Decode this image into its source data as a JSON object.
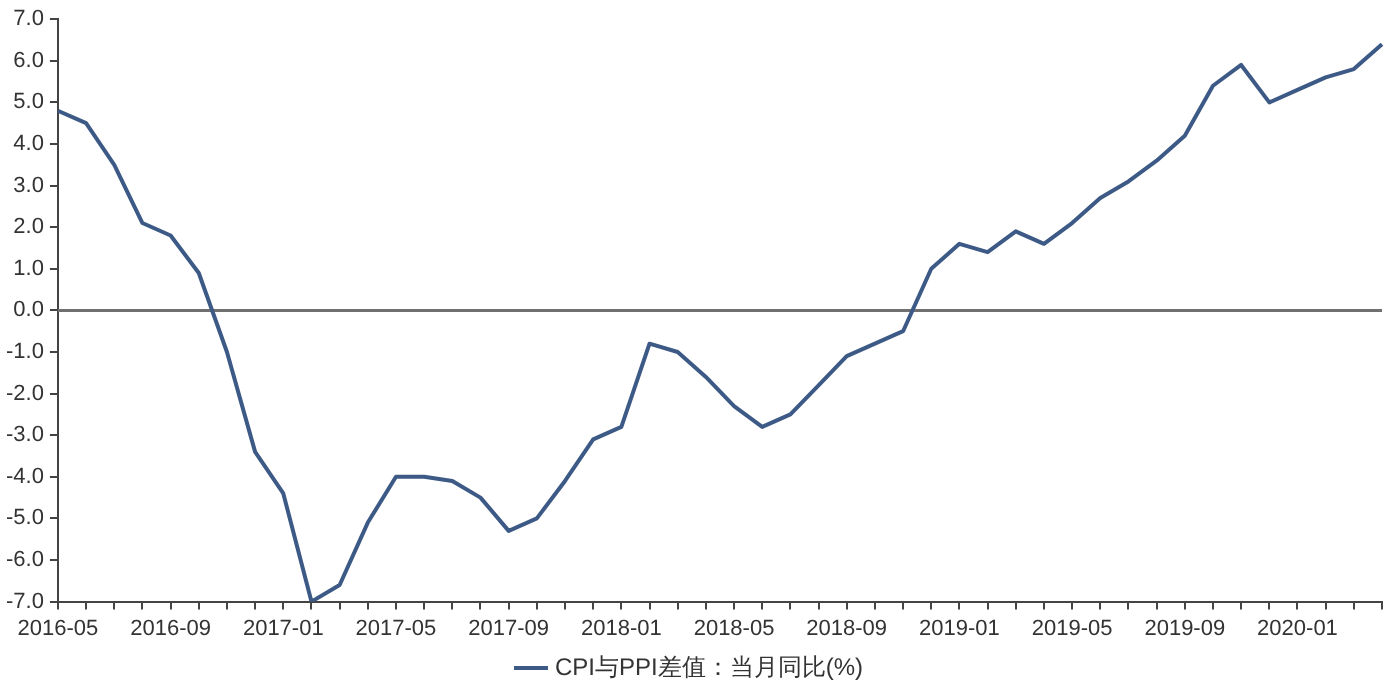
{
  "chart_data": {
    "type": "line",
    "categories": [
      "2016-05",
      null,
      null,
      null,
      "2016-09",
      null,
      null,
      null,
      "2017-01",
      null,
      null,
      null,
      "2017-05",
      null,
      null,
      null,
      "2017-09",
      null,
      null,
      null,
      "2018-01",
      null,
      null,
      null,
      "2018-05",
      null,
      null,
      null,
      "2018-09",
      null,
      null,
      null,
      "2019-01",
      null,
      null,
      null,
      "2019-05",
      null,
      null,
      null,
      "2019-09",
      null,
      null,
      null,
      "2020-01",
      null,
      null,
      null
    ],
    "series": [
      {
        "name": "CPI与PPI差值：当月同比(%)",
        "color": "#3c5a85",
        "values": [
          4.8,
          4.5,
          3.5,
          2.1,
          1.8,
          0.9,
          -1.0,
          -3.4,
          -4.4,
          -7.0,
          -6.6,
          -5.1,
          -4.0,
          -4.0,
          -4.1,
          -4.5,
          -5.3,
          -5.0,
          -4.1,
          -3.1,
          -2.8,
          -0.8,
          -1.0,
          -1.6,
          -2.3,
          -2.8,
          -2.5,
          -1.8,
          -1.1,
          -0.8,
          -0.5,
          1.0,
          1.6,
          1.4,
          1.9,
          1.6,
          2.1,
          2.7,
          3.1,
          3.6,
          4.2,
          5.4,
          5.9,
          5.0,
          5.3,
          5.6,
          5.8,
          6.4
        ]
      }
    ],
    "ylim": [
      -7,
      7
    ],
    "yticks": [
      {
        "value": -7,
        "label": "-7.0"
      },
      {
        "value": -6,
        "label": "-6.0"
      },
      {
        "value": -5,
        "label": "-5.0"
      },
      {
        "value": -4,
        "label": "-4.0"
      },
      {
        "value": -3,
        "label": "-3.0"
      },
      {
        "value": -2,
        "label": "-2.0"
      },
      {
        "value": -1,
        "label": "-1.0"
      },
      {
        "value": 0,
        "label": "0.0"
      },
      {
        "value": 1,
        "label": "1.0"
      },
      {
        "value": 2,
        "label": "2.0"
      },
      {
        "value": 3,
        "label": "3.0"
      },
      {
        "value": 4,
        "label": "4.0"
      },
      {
        "value": 5,
        "label": "5.0"
      },
      {
        "value": 6,
        "label": "6.0"
      },
      {
        "value": 7,
        "label": "7.0"
      }
    ],
    "ref_lines": [
      {
        "axis": "y",
        "value": 0,
        "color": "#707070"
      }
    ],
    "grid": false,
    "legend": "bottom",
    "marker": "none",
    "line_style": "solid"
  }
}
